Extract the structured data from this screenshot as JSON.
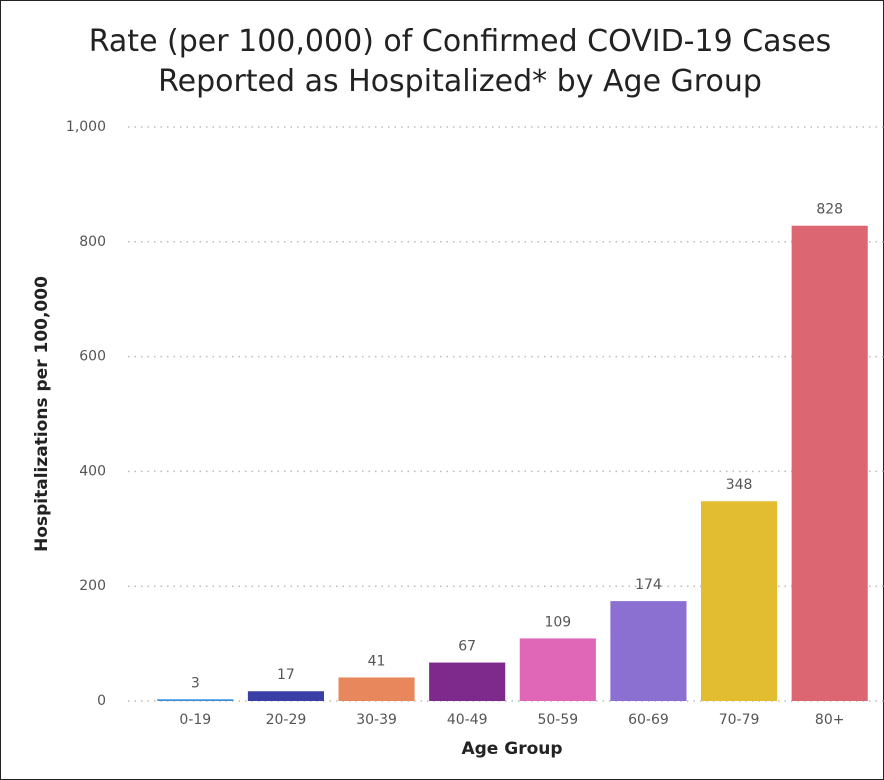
{
  "chart_data": {
    "type": "bar",
    "title": "Rate (per 100,000) of Confirmed COVID-19 Cases Reported as Hospitalized* by Age Group",
    "x_label": "Age Group",
    "y_label": "Hospitalizations per 100,000",
    "categories": [
      "0-19",
      "20-29",
      "30-39",
      "40-49",
      "50-59",
      "60-69",
      "70-79",
      "80+"
    ],
    "values": [
      3,
      17,
      41,
      67,
      109,
      174,
      348,
      828
    ],
    "colors": [
      "#3b8fd9",
      "#3a3fa6",
      "#e8875c",
      "#7e2a8c",
      "#e066b8",
      "#8b6fd1",
      "#e2bd32",
      "#dc6671"
    ],
    "ylim": [
      0,
      1000
    ],
    "yticks": [
      0,
      200,
      400,
      600,
      800,
      {
        "value": 1000,
        "label": "1,000"
      }
    ],
    "grid": true
  }
}
